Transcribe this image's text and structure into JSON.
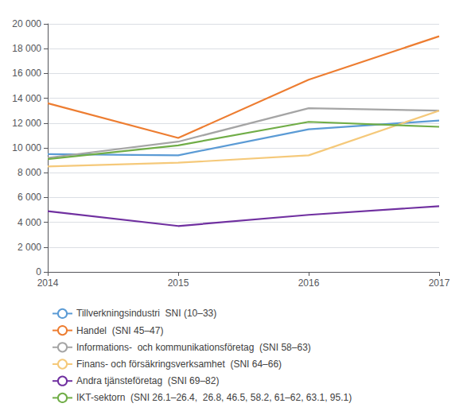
{
  "chart_data": {
    "type": "line",
    "x": [
      2014,
      2015,
      2016,
      2017
    ],
    "series": [
      {
        "name": "Tillverkningsindustri  SNI (10–33)",
        "color": "#5B9BD5",
        "values": [
          9500,
          9400,
          11500,
          12200
        ]
      },
      {
        "name": "Handel  (SNI 45–47)",
        "color": "#ED7D31",
        "values": [
          13600,
          10800,
          15500,
          19000
        ]
      },
      {
        "name": "Informations-  och kommunikationsföretag  (SNI 58–63)",
        "color": "#A5A5A5",
        "values": [
          9200,
          10500,
          13200,
          13000
        ]
      },
      {
        "name": "Finans- och försäkringsverksamhet  (SNI 64–66)",
        "color": "#F5C97A",
        "values": [
          8500,
          8800,
          9400,
          13000
        ]
      },
      {
        "name": "Andra tjänsteföretag  (SNI 69–82)",
        "color": "#7030A0",
        "values": [
          4900,
          3700,
          4600,
          5300
        ]
      },
      {
        "name": "IKT-sektorn  (SNI 26.1–26.4,  26.8, 46.5, 58.2, 61–62, 63.1, 95.1)",
        "color": "#70AD47",
        "values": [
          9100,
          10200,
          12100,
          11700
        ]
      }
    ],
    "xlim": [
      2014,
      2017
    ],
    "xticks": [
      2014,
      2015,
      2016,
      2017
    ],
    "ylim": [
      0,
      20000
    ],
    "yticks": [
      0,
      {
        "value": 2000,
        "label": "2 000"
      },
      {
        "value": 4000,
        "label": "4 000"
      },
      {
        "value": 6000,
        "label": "6 000"
      },
      {
        "value": 8000,
        "label": "8 000"
      },
      {
        "value": 10000,
        "label": "10 000"
      },
      {
        "value": 12000,
        "label": "12 000"
      },
      {
        "value": 14000,
        "label": "14 000"
      },
      {
        "value": 16000,
        "label": "16 000"
      },
      {
        "value": 18000,
        "label": "18 000"
      },
      {
        "value": 20000,
        "label": "20 000"
      }
    ],
    "grid": true,
    "legend": "bottom"
  }
}
